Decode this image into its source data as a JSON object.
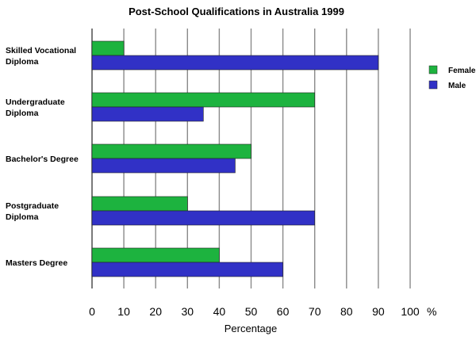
{
  "chart_data": {
    "type": "bar",
    "orientation": "horizontal",
    "title": "Post-School Qualifications in Australia 1999",
    "xlabel": "Percentage",
    "unit": "%",
    "xlim": [
      0,
      100
    ],
    "ticks": [
      0,
      10,
      20,
      30,
      40,
      50,
      60,
      70,
      80,
      90,
      100
    ],
    "grid": "vertical",
    "legend_position": "right",
    "categories": [
      [
        "Skilled Vocational",
        "Diploma"
      ],
      [
        "Undergraduate",
        "Diploma"
      ],
      [
        "Bachelor's Degree"
      ],
      [
        "Postgraduate",
        "Diploma"
      ],
      [
        "Masters Degree"
      ]
    ],
    "series": [
      {
        "name": "Female",
        "color": "#1db33f",
        "values": [
          10,
          70,
          50,
          30,
          40
        ]
      },
      {
        "name": "Male",
        "color": "#3131c6",
        "values": [
          90,
          35,
          45,
          70,
          60
        ]
      }
    ]
  }
}
